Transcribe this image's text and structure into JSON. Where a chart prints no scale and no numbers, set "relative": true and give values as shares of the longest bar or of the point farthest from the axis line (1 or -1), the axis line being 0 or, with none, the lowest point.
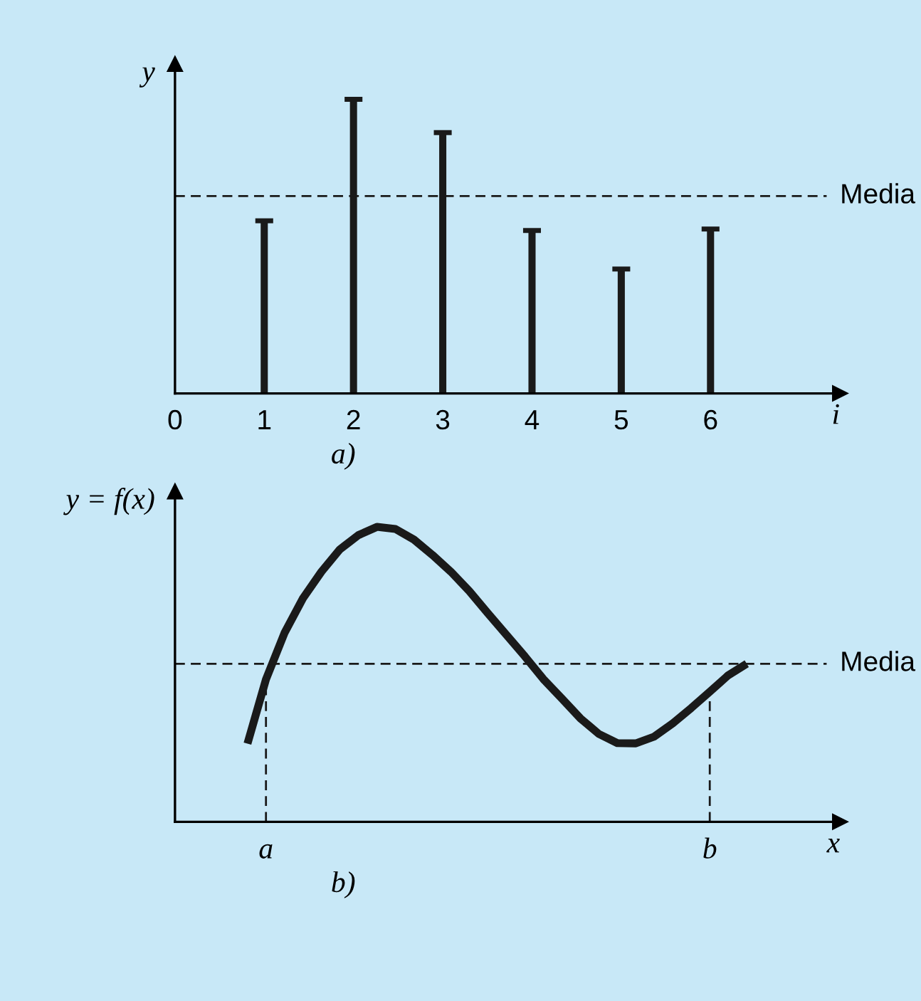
{
  "chart_data": [
    {
      "type": "bar",
      "title": "a)",
      "xlabel": "i",
      "ylabel": "y",
      "relative": true,
      "x": [
        1,
        2,
        3,
        4,
        5,
        6
      ],
      "values": [
        0.587,
        1,
        0.887,
        0.554,
        0.423,
        0.559
      ],
      "color": "#1a1a1a",
      "xlim": [
        0,
        7.45
      ],
      "xticks": [
        0,
        1,
        2,
        3,
        4,
        5,
        6
      ],
      "tick_labels": "x",
      "grid": false,
      "legend": false,
      "ref_lines": [
        {
          "axis": "y",
          "value": 0.671,
          "label": "Media",
          "line_style": "dashed",
          "color": "#1a1a1a"
        }
      ]
    },
    {
      "type": "line",
      "title": "b)",
      "xlabel": "x",
      "ylabel": "y = f(x)",
      "relative": true,
      "categories": [
        null,
        "a",
        null,
        null,
        null,
        null,
        null,
        null,
        null,
        null,
        null,
        null,
        null,
        null,
        null,
        null,
        null,
        null,
        null,
        null,
        null,
        null,
        null,
        null,
        null,
        "b",
        null,
        null
      ],
      "values": [
        0.265,
        0.483,
        0.64,
        0.758,
        0.848,
        0.924,
        0.972,
        1,
        0.993,
        0.957,
        0.905,
        0.848,
        0.782,
        0.707,
        0.634,
        0.561,
        0.484,
        0.418,
        0.351,
        0.298,
        0.267,
        0.266,
        0.289,
        0.334,
        0.386,
        0.441,
        0.497,
        0.536
      ],
      "color": "#1a1a1a",
      "line_style": "solid",
      "marker": "none",
      "tick_labels": "x",
      "grid": false,
      "legend": false,
      "ref_lines": [
        {
          "axis": "y",
          "value": 0.536,
          "label": "Media",
          "line_style": "dashed",
          "color": "#1a1a1a"
        },
        {
          "axis": "x",
          "value": "a",
          "line_style": "dashed",
          "color": "#1a1a1a"
        },
        {
          "axis": "x",
          "value": "b",
          "line_style": "dashed",
          "color": "#1a1a1a"
        }
      ]
    }
  ]
}
